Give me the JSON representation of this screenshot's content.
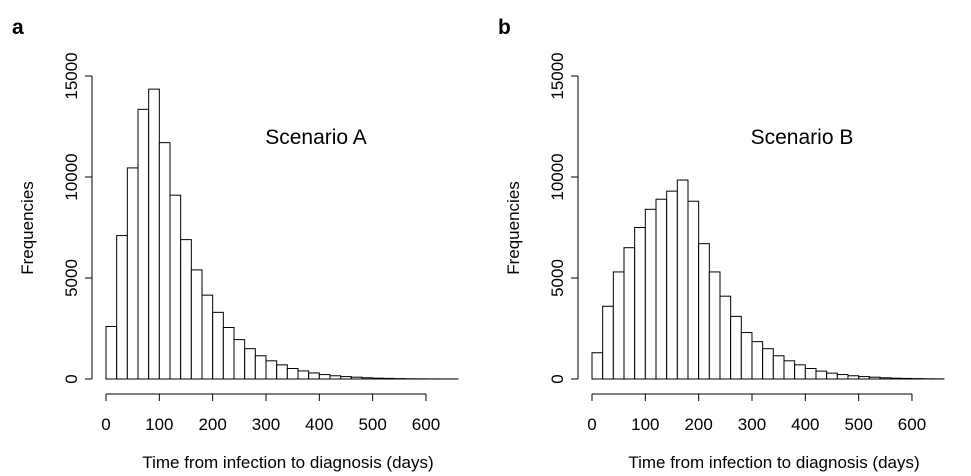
{
  "chart_data": [
    {
      "panel": "a",
      "type": "bar",
      "annotation": "Scenario A",
      "xlabel": "Time from infection to diagnosis (days)",
      "ylabel": "Frequencies",
      "bin_width": 20,
      "bin_start": 0,
      "xticks": [
        0,
        100,
        200,
        300,
        400,
        500,
        600
      ],
      "yticks": [
        0,
        5000,
        10000,
        15000
      ],
      "xlim": [
        0,
        660
      ],
      "ylim": [
        0,
        15000
      ],
      "values": [
        2600,
        7100,
        10450,
        13350,
        14350,
        11700,
        9100,
        6900,
        5400,
        4150,
        3300,
        2550,
        1950,
        1500,
        1150,
        900,
        700,
        520,
        400,
        300,
        220,
        160,
        120,
        90,
        60,
        40,
        30,
        20,
        12,
        8,
        5,
        3,
        2
      ]
    },
    {
      "panel": "b",
      "type": "bar",
      "annotation": "Scenario B",
      "xlabel": "Time from infection to diagnosis (days)",
      "ylabel": "Frequencies",
      "bin_width": 20,
      "bin_start": 0,
      "xticks": [
        0,
        100,
        200,
        300,
        400,
        500,
        600
      ],
      "yticks": [
        0,
        5000,
        10000,
        15000
      ],
      "xlim": [
        0,
        660
      ],
      "ylim": [
        0,
        15000
      ],
      "values": [
        1300,
        3600,
        5300,
        6500,
        7500,
        8400,
        8900,
        9300,
        9850,
        8800,
        6700,
        5300,
        4100,
        3100,
        2300,
        1850,
        1500,
        1150,
        900,
        700,
        520,
        390,
        290,
        220,
        160,
        120,
        90,
        60,
        40,
        28,
        18,
        10,
        6
      ]
    }
  ]
}
